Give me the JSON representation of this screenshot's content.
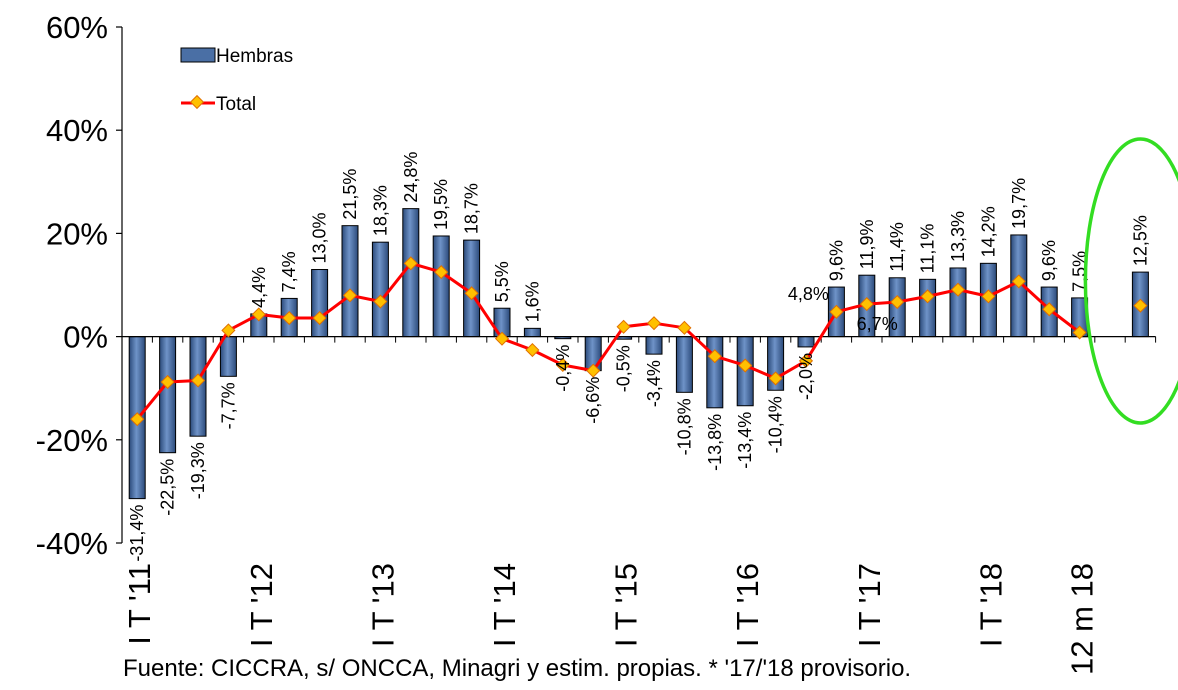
{
  "chart_data": {
    "type": "bar",
    "ylim": [
      -40,
      60
    ],
    "yticks": [
      -40,
      -20,
      0,
      20,
      40,
      60
    ],
    "ytick_labels": [
      "-40%",
      "-20%",
      "0%",
      "20%",
      "40%",
      "60%"
    ],
    "x_labels": [
      {
        "index": 0,
        "text": "I T '11"
      },
      {
        "index": 4,
        "text": "I T '12"
      },
      {
        "index": 8,
        "text": "I T '13"
      },
      {
        "index": 12,
        "text": "I T '14"
      },
      {
        "index": 16,
        "text": "I T '15"
      },
      {
        "index": 20,
        "text": "I T '16"
      },
      {
        "index": 24,
        "text": "I T '17"
      },
      {
        "index": 28,
        "text": "I T '18"
      },
      {
        "index": 31,
        "text": "12 m 18"
      }
    ],
    "legend_placement": "top-left",
    "grid": false,
    "series": [
      {
        "name": "Hembras",
        "type": "bar",
        "color": "#4a6fa5",
        "values": [
          -31.4,
          -22.5,
          -19.3,
          -7.7,
          4.4,
          7.4,
          13.0,
          21.5,
          18.3,
          24.8,
          19.5,
          18.7,
          5.5,
          1.6,
          -0.4,
          -6.6,
          -0.5,
          -3.4,
          -10.8,
          -13.8,
          -13.4,
          -10.4,
          -2.0,
          9.6,
          11.9,
          11.4,
          11.1,
          13.3,
          14.2,
          19.7,
          9.6,
          7.5,
          null,
          12.5
        ],
        "labels": [
          "-31,4%",
          "-22,5%",
          "-19,3%",
          "-7,7%",
          "4,4%",
          "7,4%",
          "13,0%",
          "21,5%",
          "18,3%",
          "24,8%",
          "19,5%",
          "18,7%",
          "5,5%",
          "1,6%",
          "-0,4%",
          "-6,6%",
          "-0,5%",
          "-3,4%",
          "-10,8%",
          "-13,8%",
          "-13,4%",
          "-10,4%",
          "-2,0%",
          "9,6%",
          "11,9%",
          "11,4%",
          "11,1%",
          "13,3%",
          "14,2%",
          "19,7%",
          "9,6%",
          "7,5%",
          null,
          "12,5%"
        ]
      },
      {
        "name": "Total",
        "type": "line",
        "color": "#ff0000",
        "marker_color": "#ffc000",
        "values": [
          -16.0,
          -8.8,
          -8.5,
          1.2,
          4.3,
          3.6,
          3.6,
          8.0,
          6.8,
          14.2,
          12.5,
          8.4,
          -0.4,
          -2.6,
          -5.5,
          -6.6,
          1.9,
          2.6,
          1.7,
          -3.8,
          -5.6,
          -8.1,
          -4.7,
          4.8,
          6.3,
          6.7,
          7.8,
          9.1,
          7.8,
          10.7,
          5.3,
          0.8,
          null,
          6.0
        ],
        "labels": [
          {
            "index": 23,
            "text": "4,8%"
          },
          {
            "index": 25,
            "text": "6,7%"
          }
        ]
      }
    ],
    "annotation": {
      "type": "ellipse",
      "color": "#33dd22",
      "around_index": 33
    }
  },
  "footnote": "Fuente: CICCRA, s/ ONCCA, Minagri y estim. propias. * '17/'18 provisorio."
}
